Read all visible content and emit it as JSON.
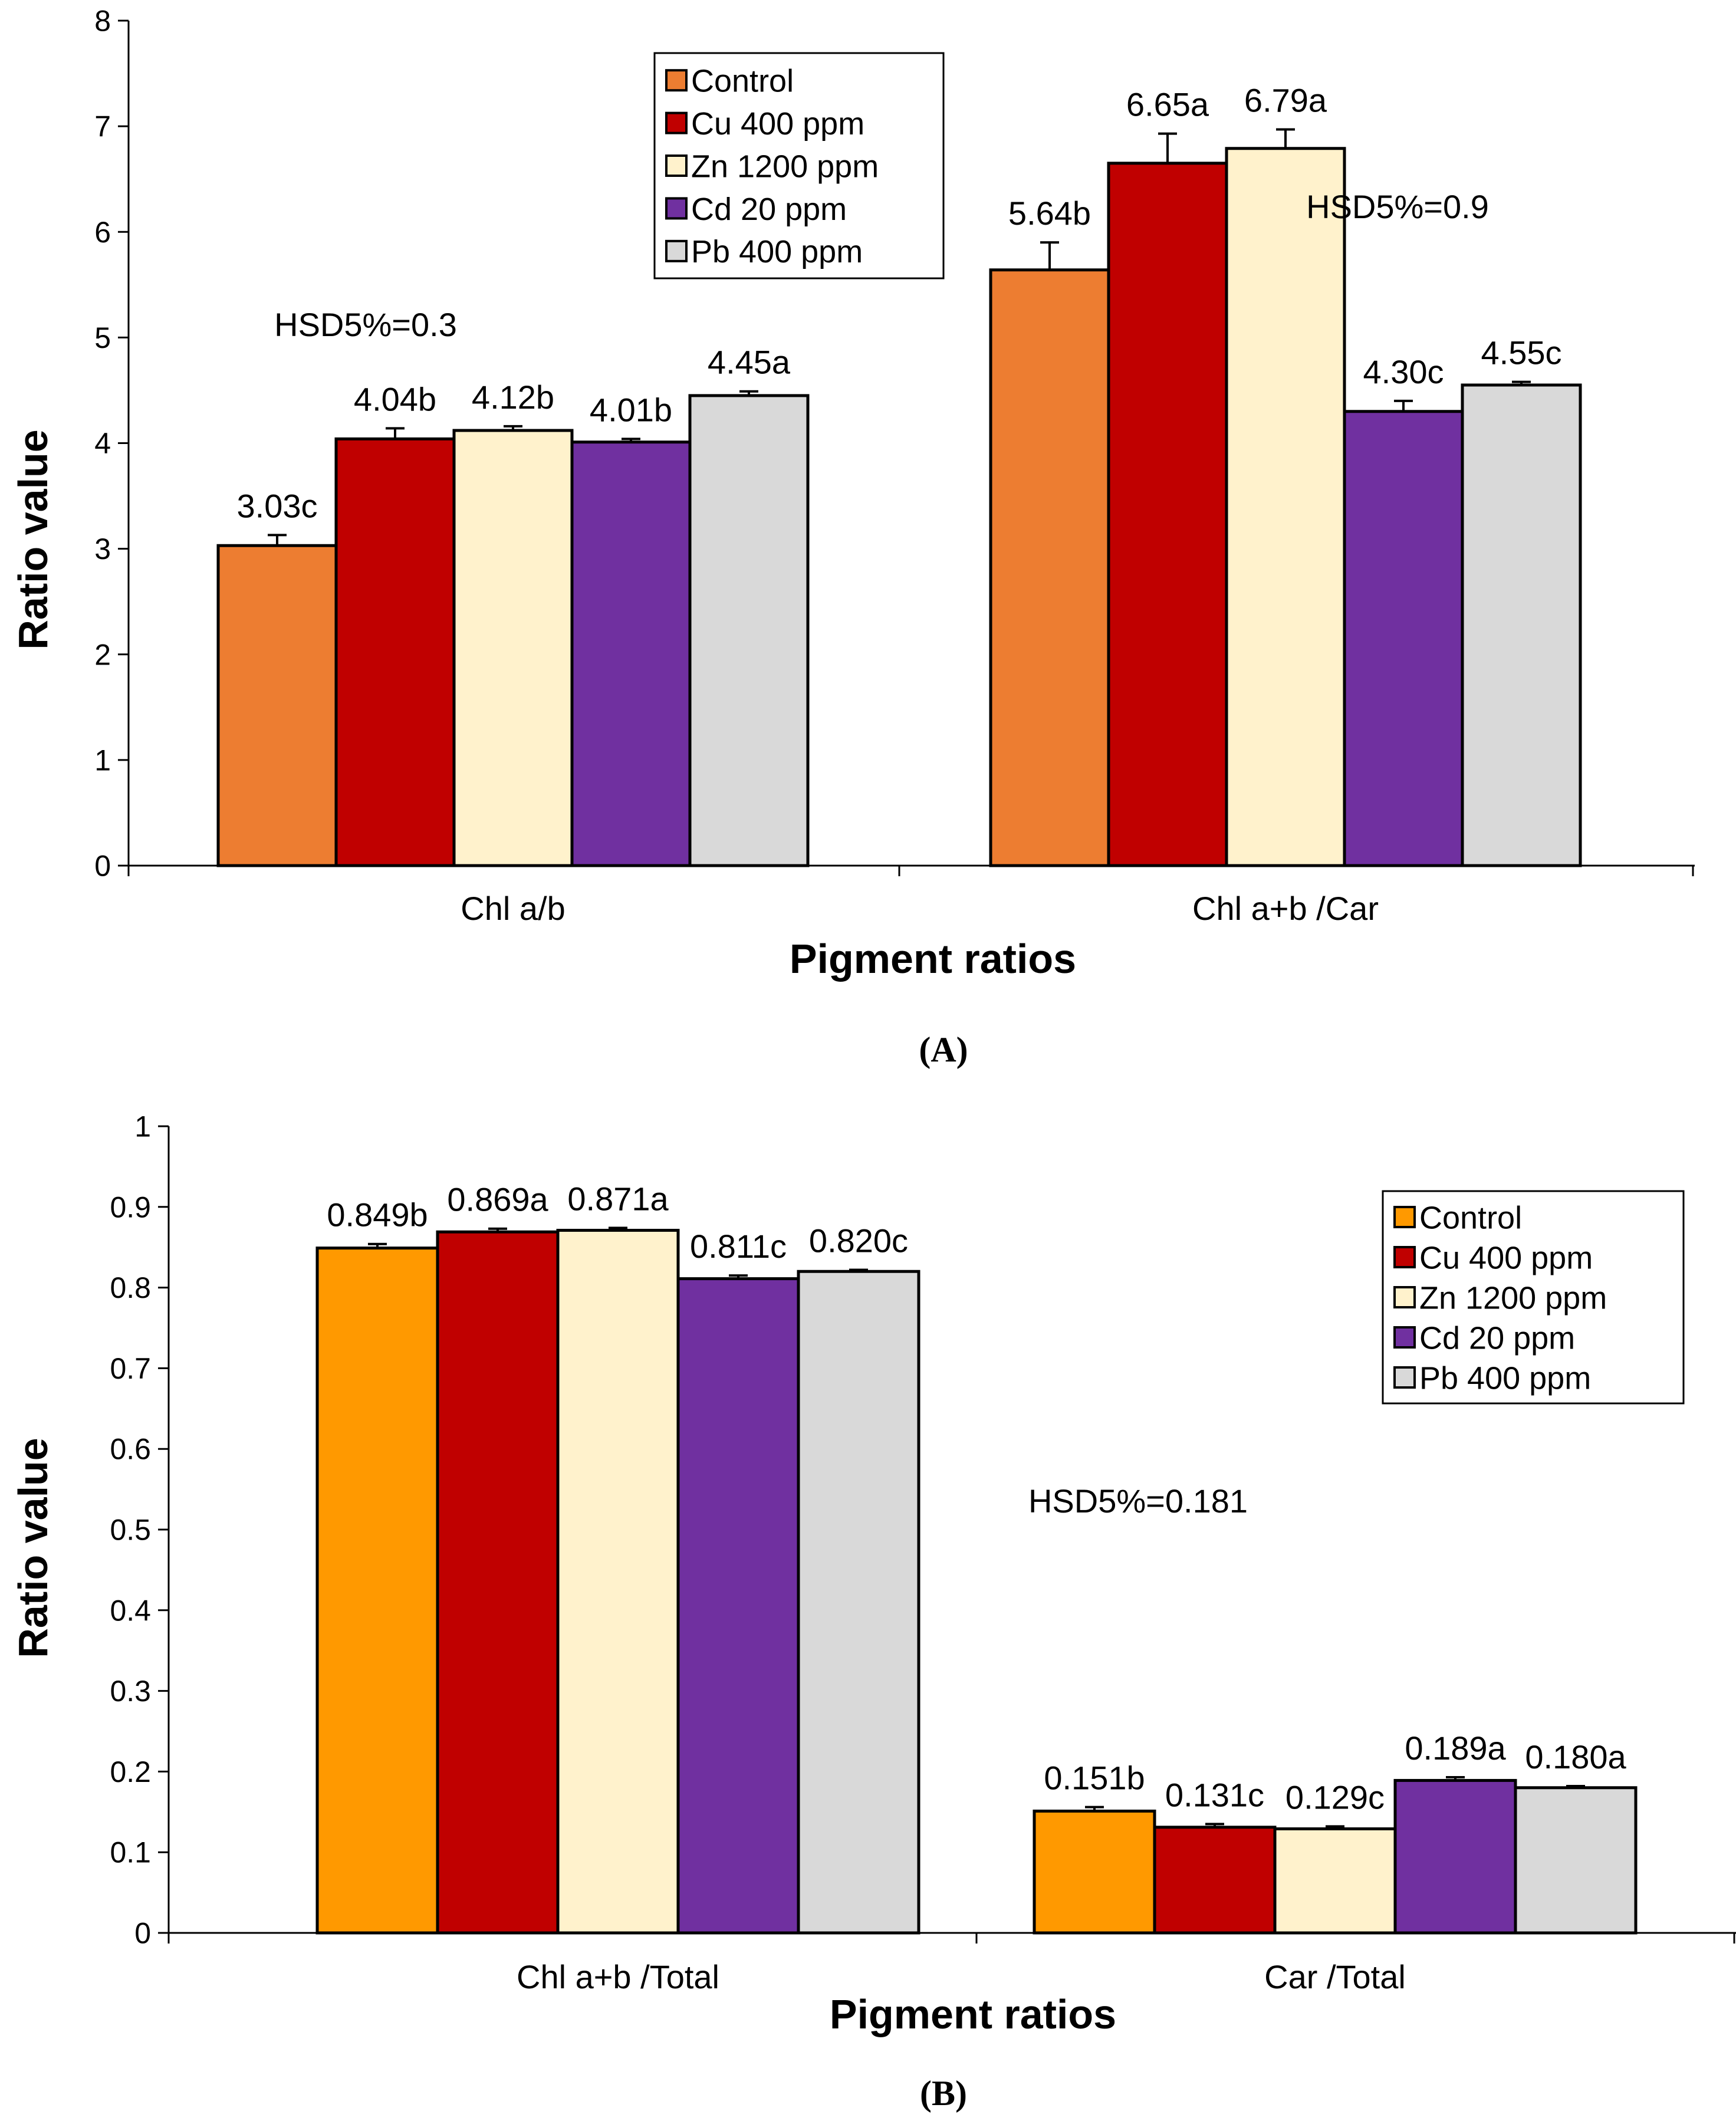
{
  "charts": [
    {
      "panel_label": "(A)",
      "chart_data": {
        "type": "bar",
        "categories": [
          "Chl a/b",
          "Chl a+b /Car"
        ],
        "series": [
          {
            "name": "Control",
            "values": [
              3.03,
              5.64
            ],
            "errors": [
              0.1,
              0.26
            ],
            "labels": [
              "3.03c",
              "5.64b"
            ]
          },
          {
            "name": "Cu 400 ppm",
            "values": [
              4.04,
              6.65
            ],
            "errors": [
              0.1,
              0.28
            ],
            "labels": [
              "4.04b",
              "6.65a"
            ]
          },
          {
            "name": "Zn 1200 ppm",
            "values": [
              4.12,
              6.79
            ],
            "errors": [
              0.04,
              0.18
            ],
            "labels": [
              "4.12b",
              "6.79a"
            ]
          },
          {
            "name": "Cd 20 ppm",
            "values": [
              4.01,
              4.3
            ],
            "errors": [
              0.03,
              0.1
            ],
            "labels": [
              "4.01b",
              "4.30c"
            ]
          },
          {
            "name": "Pb 400 ppm",
            "values": [
              4.45,
              4.55
            ],
            "errors": [
              0.04,
              0.03
            ],
            "labels": [
              "4.45a",
              "4.55c"
            ]
          }
        ],
        "xlabel": "Pigment ratios",
        "ylabel": "Ratio value",
        "ylim": [
          0,
          8
        ],
        "yticks": [
          "0",
          "1",
          "2",
          "3",
          "4",
          "5",
          "6",
          "7",
          "8"
        ],
        "annotations": [
          "HSD5%=0.3",
          "HSD5%=0.9"
        ],
        "legend_placement": "top-center",
        "grid": false,
        "colors": [
          "#ED7D31",
          "#C00000",
          "#FFF2CC",
          "#7030A0",
          "#D9D9D9"
        ]
      }
    },
    {
      "panel_label": "(B)",
      "chart_data": {
        "type": "bar",
        "categories": [
          "Chl a+b /Total",
          "Car /Total"
        ],
        "series": [
          {
            "name": "Control",
            "values": [
              0.849,
              0.151
            ],
            "errors": [
              0.005,
              0.005
            ],
            "labels": [
              "0.849b",
              "0.151b"
            ]
          },
          {
            "name": "Cu 400 ppm",
            "values": [
              0.869,
              0.131
            ],
            "errors": [
              0.004,
              0.004
            ],
            "labels": [
              "0.869a",
              "0.131c"
            ]
          },
          {
            "name": "Zn 1200 ppm",
            "values": [
              0.871,
              0.129
            ],
            "errors": [
              0.003,
              0.003
            ],
            "labels": [
              "0.871a",
              "0.129c"
            ]
          },
          {
            "name": "Cd 20 ppm",
            "values": [
              0.811,
              0.189
            ],
            "errors": [
              0.004,
              0.004
            ],
            "labels": [
              "0.811c",
              "0.189a"
            ]
          },
          {
            "name": "Pb 400 ppm",
            "values": [
              0.82,
              0.18
            ],
            "errors": [
              0.002,
              0.002
            ],
            "labels": [
              "0.820c",
              "0.180a"
            ]
          }
        ],
        "xlabel": "Pigment ratios",
        "ylabel": "Ratio value",
        "ylim": [
          0,
          1
        ],
        "yticks": [
          "0",
          "0.1",
          "0.2",
          "0.3",
          "0.4",
          "0.5",
          "0.6",
          "0.7",
          "0.8",
          "0.9",
          "1"
        ],
        "annotations": [
          "HSD5%=0.181"
        ],
        "legend_placement": "top-right",
        "grid": false,
        "colors": [
          "#FF9900",
          "#C00000",
          "#FFF2CC",
          "#7030A0",
          "#D9D9D9"
        ]
      }
    }
  ]
}
